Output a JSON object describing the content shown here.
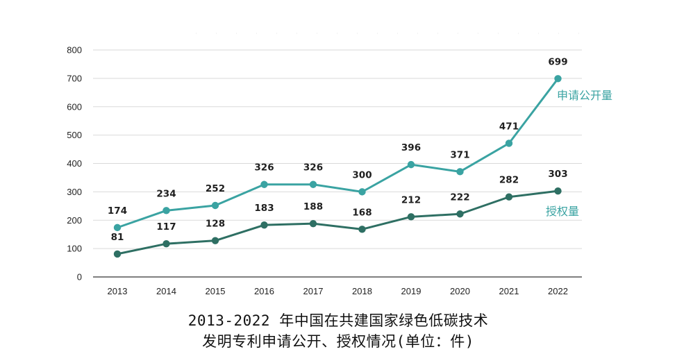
{
  "chart_data": {
    "type": "line",
    "title": "2013-2022 年中国在共建国家绿色低碳技术",
    "subtitle": "发明专利申请公开、授权情况(单位：件)",
    "categories": [
      "2013",
      "2014",
      "2015",
      "2016",
      "2017",
      "2018",
      "2019",
      "2020",
      "2021",
      "2022"
    ],
    "yticks": [
      "0",
      "100",
      "200",
      "300",
      "400",
      "500",
      "600",
      "700",
      "800"
    ],
    "ylim": [
      0,
      800
    ],
    "grid": true,
    "series": [
      {
        "name": "申请公开量",
        "values": [
          174,
          234,
          252,
          326,
          326,
          300,
          396,
          371,
          471,
          699
        ],
        "color": "#3aa3a2"
      },
      {
        "name": "授权量",
        "values": [
          81,
          117,
          128,
          183,
          188,
          168,
          212,
          222,
          282,
          303
        ],
        "color": "#2e6f63"
      }
    ],
    "series_label_colors": [
      "#3aa3a2",
      "#3aa3a2"
    ]
  }
}
